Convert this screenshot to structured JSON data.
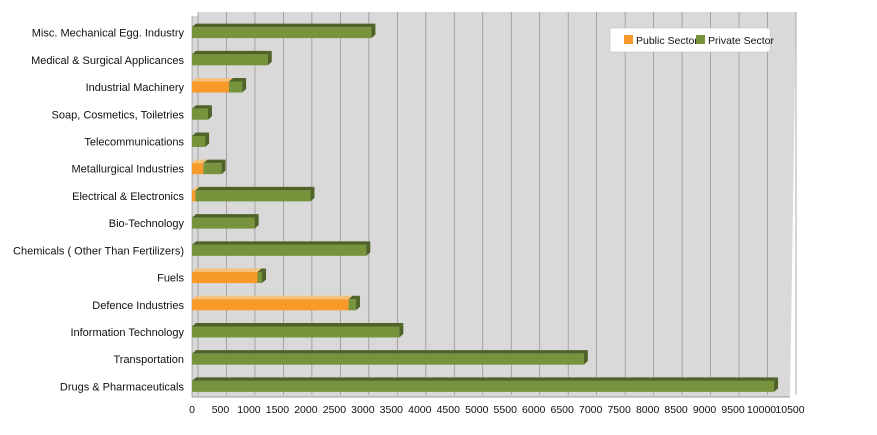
{
  "chart_data": {
    "type": "bar",
    "orientation": "horizontal",
    "stacked": true,
    "categories": [
      "Misc. Mechanical Egg. Industry",
      "Medical & Surgical Applicances",
      "Industrial Machinery",
      "Soap, Cosmetics, Toiletries",
      "Telecommunications",
      "Metallurgical Industries",
      "Electrical & Electronics",
      "Bio-Technology",
      "Chemicals ( Other Than Fertilizers)",
      "Fuels",
      "Defence Industries",
      "Information Technology",
      "Transportation",
      "Drugs & Pharmaceuticals"
    ],
    "series": [
      {
        "name": "Public Sector",
        "color": "#f79a2a",
        "values": [
          0,
          0,
          650,
          0,
          0,
          200,
          60,
          0,
          0,
          1150,
          2750,
          0,
          0,
          0
        ]
      },
      {
        "name": "Private Sector",
        "color": "#77933c",
        "values": [
          3150,
          1330,
          230,
          280,
          230,
          320,
          2020,
          1100,
          3060,
          80,
          130,
          3640,
          6880,
          10220
        ]
      }
    ],
    "xlim": [
      0,
      10500
    ],
    "xticks": [
      "0",
      "500",
      "1000",
      "1500",
      "2000",
      "2500",
      "3000",
      "3500",
      "4000",
      "4500",
      "5000",
      "5500",
      "6000",
      "6500",
      "7000",
      "7500",
      "8000",
      "8500",
      "9000",
      "9500",
      "10000",
      "10500"
    ],
    "grid": true,
    "legend_position": "top-right"
  },
  "colors": {
    "plot_background": "#d9d9d9",
    "gridline": "#8c8c8c",
    "public_top": "#f5c07a",
    "private_top": "#4f6228"
  }
}
